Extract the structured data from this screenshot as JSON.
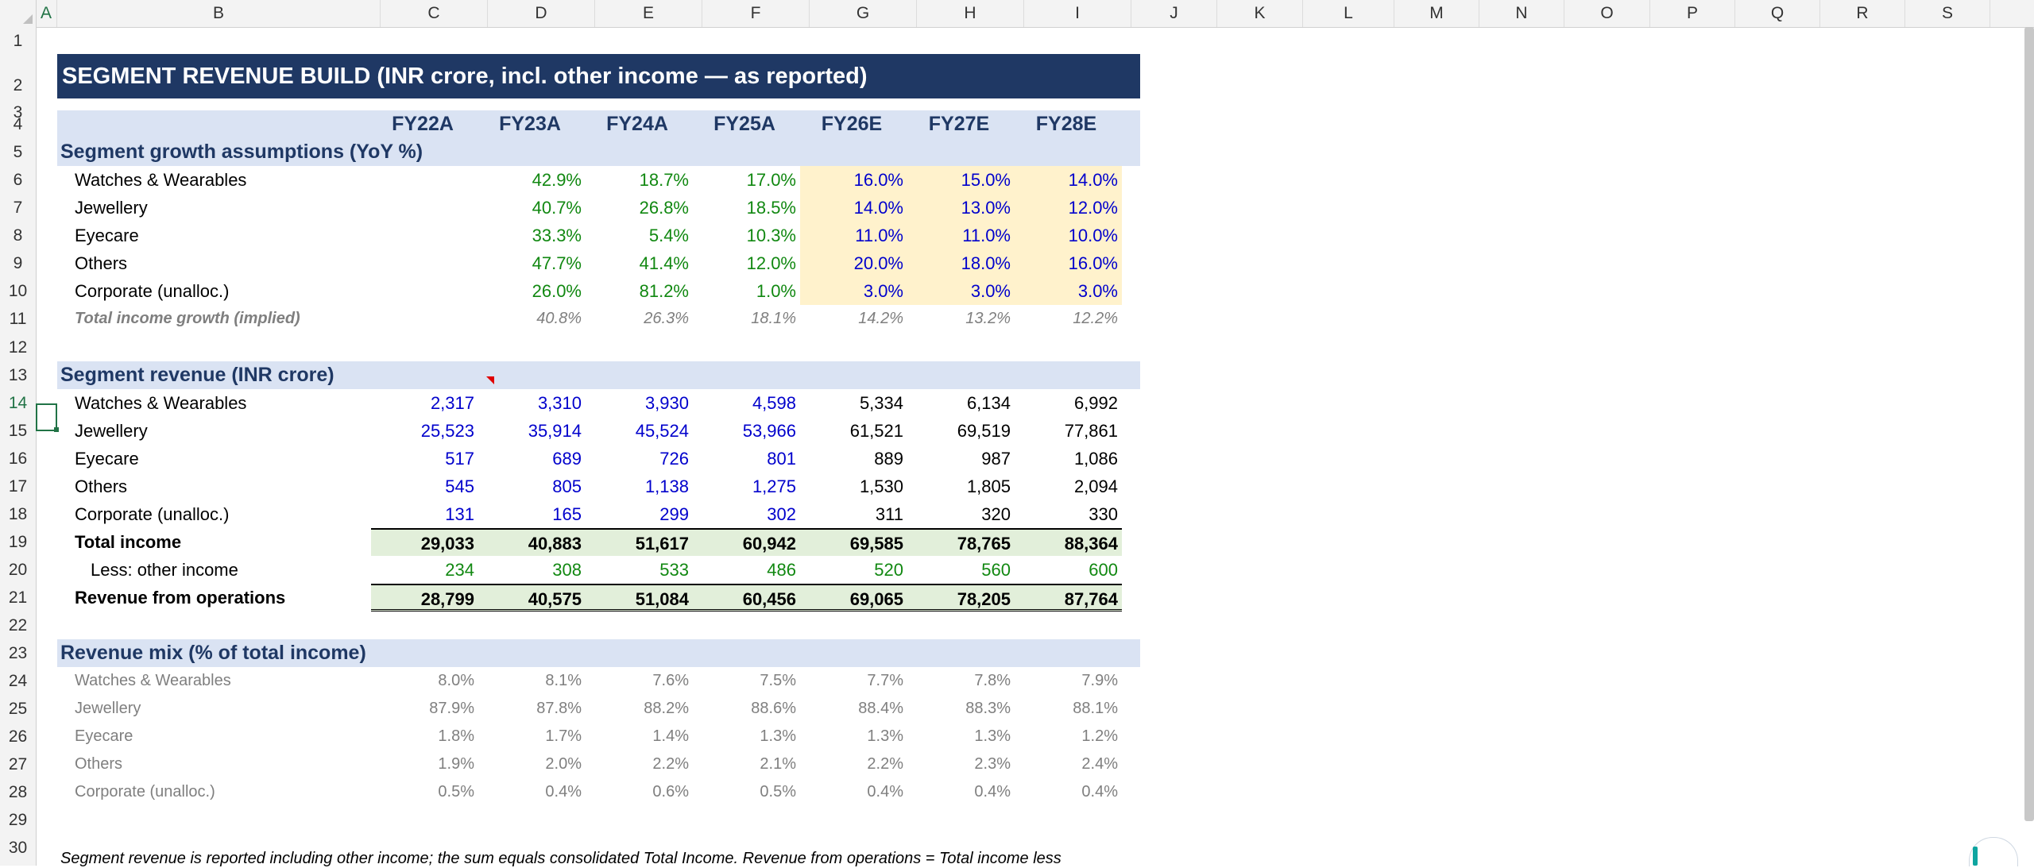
{
  "columns": [
    "A",
    "B",
    "C",
    "D",
    "E",
    "F",
    "G",
    "H",
    "I",
    "J",
    "K",
    "L",
    "M",
    "N",
    "O",
    "P",
    "Q",
    "R",
    "S"
  ],
  "rows": [
    "1",
    "2",
    "3",
    "4",
    "5",
    "6",
    "7",
    "8",
    "9",
    "10",
    "11",
    "12",
    "13",
    "14",
    "15",
    "16",
    "17",
    "18",
    "19",
    "20",
    "21",
    "22",
    "23",
    "24",
    "25",
    "26",
    "27",
    "28",
    "29",
    "30"
  ],
  "selected": {
    "column": "A",
    "row": "14"
  },
  "title": "SEGMENT REVENUE BUILD  (INR crore, incl. other income — as reported)",
  "years": [
    "FY22A",
    "FY23A",
    "FY24A",
    "FY25A",
    "FY26E",
    "FY27E",
    "FY28E"
  ],
  "growth": {
    "heading": "Segment growth assumptions (YoY %)",
    "rows": [
      {
        "label": "Watches & Wearables",
        "values": [
          "",
          "42.9%",
          "18.7%",
          "17.0%",
          "16.0%",
          "15.0%",
          "14.0%"
        ]
      },
      {
        "label": "Jewellery",
        "values": [
          "",
          "40.7%",
          "26.8%",
          "18.5%",
          "14.0%",
          "13.0%",
          "12.0%"
        ]
      },
      {
        "label": "Eyecare",
        "values": [
          "",
          "33.3%",
          "5.4%",
          "10.3%",
          "11.0%",
          "11.0%",
          "10.0%"
        ]
      },
      {
        "label": "Others",
        "values": [
          "",
          "47.7%",
          "41.4%",
          "12.0%",
          "20.0%",
          "18.0%",
          "16.0%"
        ]
      },
      {
        "label": "Corporate (unalloc.)",
        "values": [
          "",
          "26.0%",
          "81.2%",
          "1.0%",
          "3.0%",
          "3.0%",
          "3.0%"
        ]
      }
    ],
    "total": {
      "label": "Total income growth (implied)",
      "values": [
        "",
        "40.8%",
        "26.3%",
        "18.1%",
        "14.2%",
        "13.2%",
        "12.2%"
      ]
    }
  },
  "revenue": {
    "heading": "Segment revenue (INR crore)",
    "rows": [
      {
        "label": "Watches & Wearables",
        "values": [
          "2,317",
          "3,310",
          "3,930",
          "4,598",
          "5,334",
          "6,134",
          "6,992"
        ]
      },
      {
        "label": "Jewellery",
        "values": [
          "25,523",
          "35,914",
          "45,524",
          "53,966",
          "61,521",
          "69,519",
          "77,861"
        ]
      },
      {
        "label": "Eyecare",
        "values": [
          "517",
          "689",
          "726",
          "801",
          "889",
          "987",
          "1,086"
        ]
      },
      {
        "label": "Others",
        "values": [
          "545",
          "805",
          "1,138",
          "1,275",
          "1,530",
          "1,805",
          "2,094"
        ]
      },
      {
        "label": "Corporate (unalloc.)",
        "values": [
          "131",
          "165",
          "299",
          "302",
          "311",
          "320",
          "330"
        ]
      }
    ],
    "total": {
      "label": "Total income",
      "values": [
        "29,033",
        "40,883",
        "51,617",
        "60,942",
        "69,585",
        "78,765",
        "88,364"
      ]
    },
    "other": {
      "label": "Less: other income",
      "values": [
        "234",
        "308",
        "533",
        "486",
        "520",
        "560",
        "600"
      ]
    },
    "ops": {
      "label": "Revenue from operations",
      "values": [
        "28,799",
        "40,575",
        "51,084",
        "60,456",
        "69,065",
        "78,205",
        "87,764"
      ]
    }
  },
  "mix": {
    "heading": "Revenue mix (% of total income)",
    "rows": [
      {
        "label": "Watches & Wearables",
        "values": [
          "8.0%",
          "8.1%",
          "7.6%",
          "7.5%",
          "7.7%",
          "7.8%",
          "7.9%"
        ]
      },
      {
        "label": "Jewellery",
        "values": [
          "87.9%",
          "87.8%",
          "88.2%",
          "88.6%",
          "88.4%",
          "88.3%",
          "88.1%"
        ]
      },
      {
        "label": "Eyecare",
        "values": [
          "1.8%",
          "1.7%",
          "1.4%",
          "1.3%",
          "1.3%",
          "1.3%",
          "1.2%"
        ]
      },
      {
        "label": "Others",
        "values": [
          "1.9%",
          "2.0%",
          "2.2%",
          "2.1%",
          "2.2%",
          "2.3%",
          "2.4%"
        ]
      },
      {
        "label": "Corporate (unalloc.)",
        "values": [
          "0.5%",
          "0.4%",
          "0.6%",
          "0.5%",
          "0.4%",
          "0.4%",
          "0.4%"
        ]
      }
    ]
  },
  "note": "Segment revenue is reported including other income; the sum equals consolidated Total Income. Revenue from operations = Total income less",
  "colors": {
    "header_band": "#1f3864",
    "section_band": "#dae3f3",
    "assumption_fill": "#fff2cc",
    "total_fill": "#e2efda",
    "input_blue": "#0000cc",
    "historical_green": "#118811"
  }
}
